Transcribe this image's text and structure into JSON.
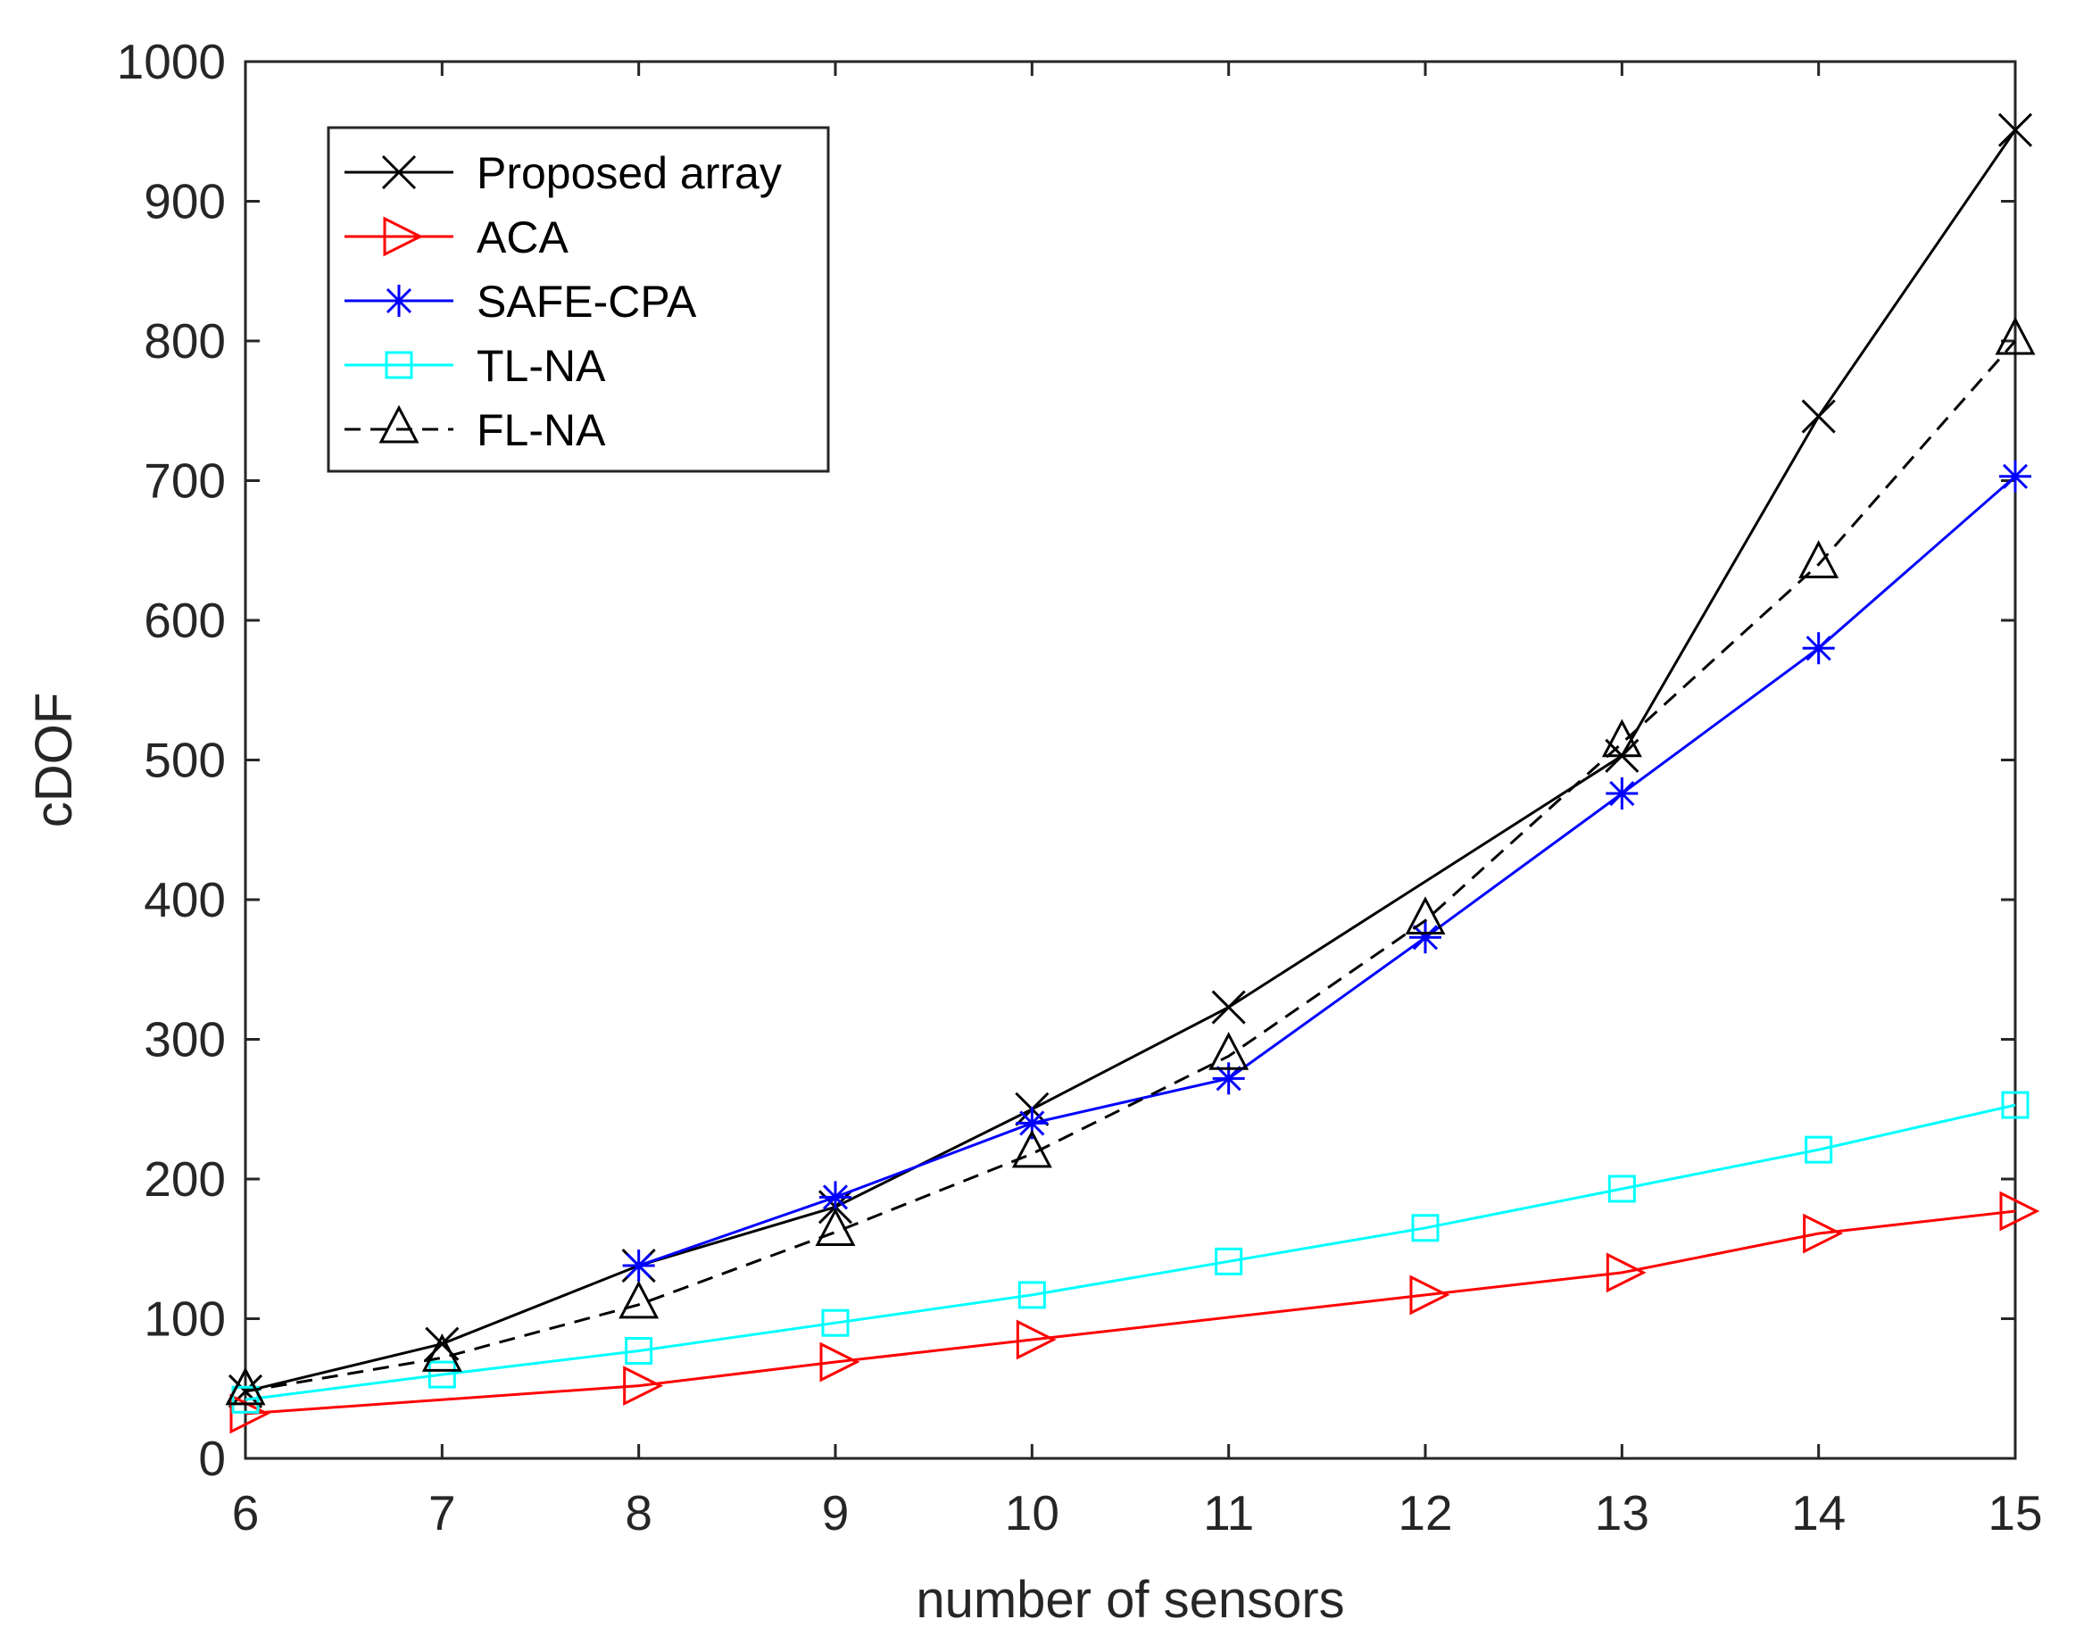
{
  "chart_data": {
    "type": "line",
    "title": "",
    "xlabel": "number of sensors",
    "ylabel": "cDOF",
    "xlim": [
      6,
      15
    ],
    "ylim": [
      0,
      1000
    ],
    "x_ticks": [
      6,
      7,
      8,
      9,
      10,
      11,
      12,
      13,
      14,
      15
    ],
    "y_ticks": [
      0,
      100,
      200,
      300,
      400,
      500,
      600,
      700,
      800,
      900,
      1000
    ],
    "grid": false,
    "legend_position": "top-left",
    "x": [
      6,
      7,
      8,
      9,
      10,
      11,
      12,
      13,
      14,
      15
    ],
    "series": [
      {
        "name": "Proposed array",
        "color": "#000000",
        "marker": "x",
        "linestyle": "solid",
        "values": [
          48,
          82,
          138,
          180,
          250,
          323,
          null,
          503,
          746,
          951
        ],
        "marker_x": [
          6,
          7,
          8,
          9,
          10,
          11,
          13,
          14,
          15
        ]
      },
      {
        "name": "ACA",
        "color": "#ff0000",
        "marker": "triangle-right",
        "linestyle": "solid",
        "values": [
          32,
          null,
          52,
          69,
          85,
          null,
          117,
          133,
          161,
          177
        ]
      },
      {
        "name": "SAFE-CPA",
        "color": "#0000ff",
        "marker": "asterisk",
        "linestyle": "solid",
        "values": [
          null,
          null,
          138,
          187,
          240,
          272,
          373,
          476,
          580,
          703
        ]
      },
      {
        "name": "TL-NA",
        "color": "#00ffff",
        "marker": "square",
        "linestyle": "solid",
        "values": [
          42,
          60,
          77,
          97,
          117,
          141,
          165,
          193,
          221,
          253
        ]
      },
      {
        "name": "FL-NA",
        "color": "#000000",
        "marker": "triangle-up",
        "linestyle": "dashed",
        "values": [
          48,
          72,
          110,
          162,
          218,
          288,
          385,
          512,
          640,
          800
        ]
      }
    ]
  }
}
